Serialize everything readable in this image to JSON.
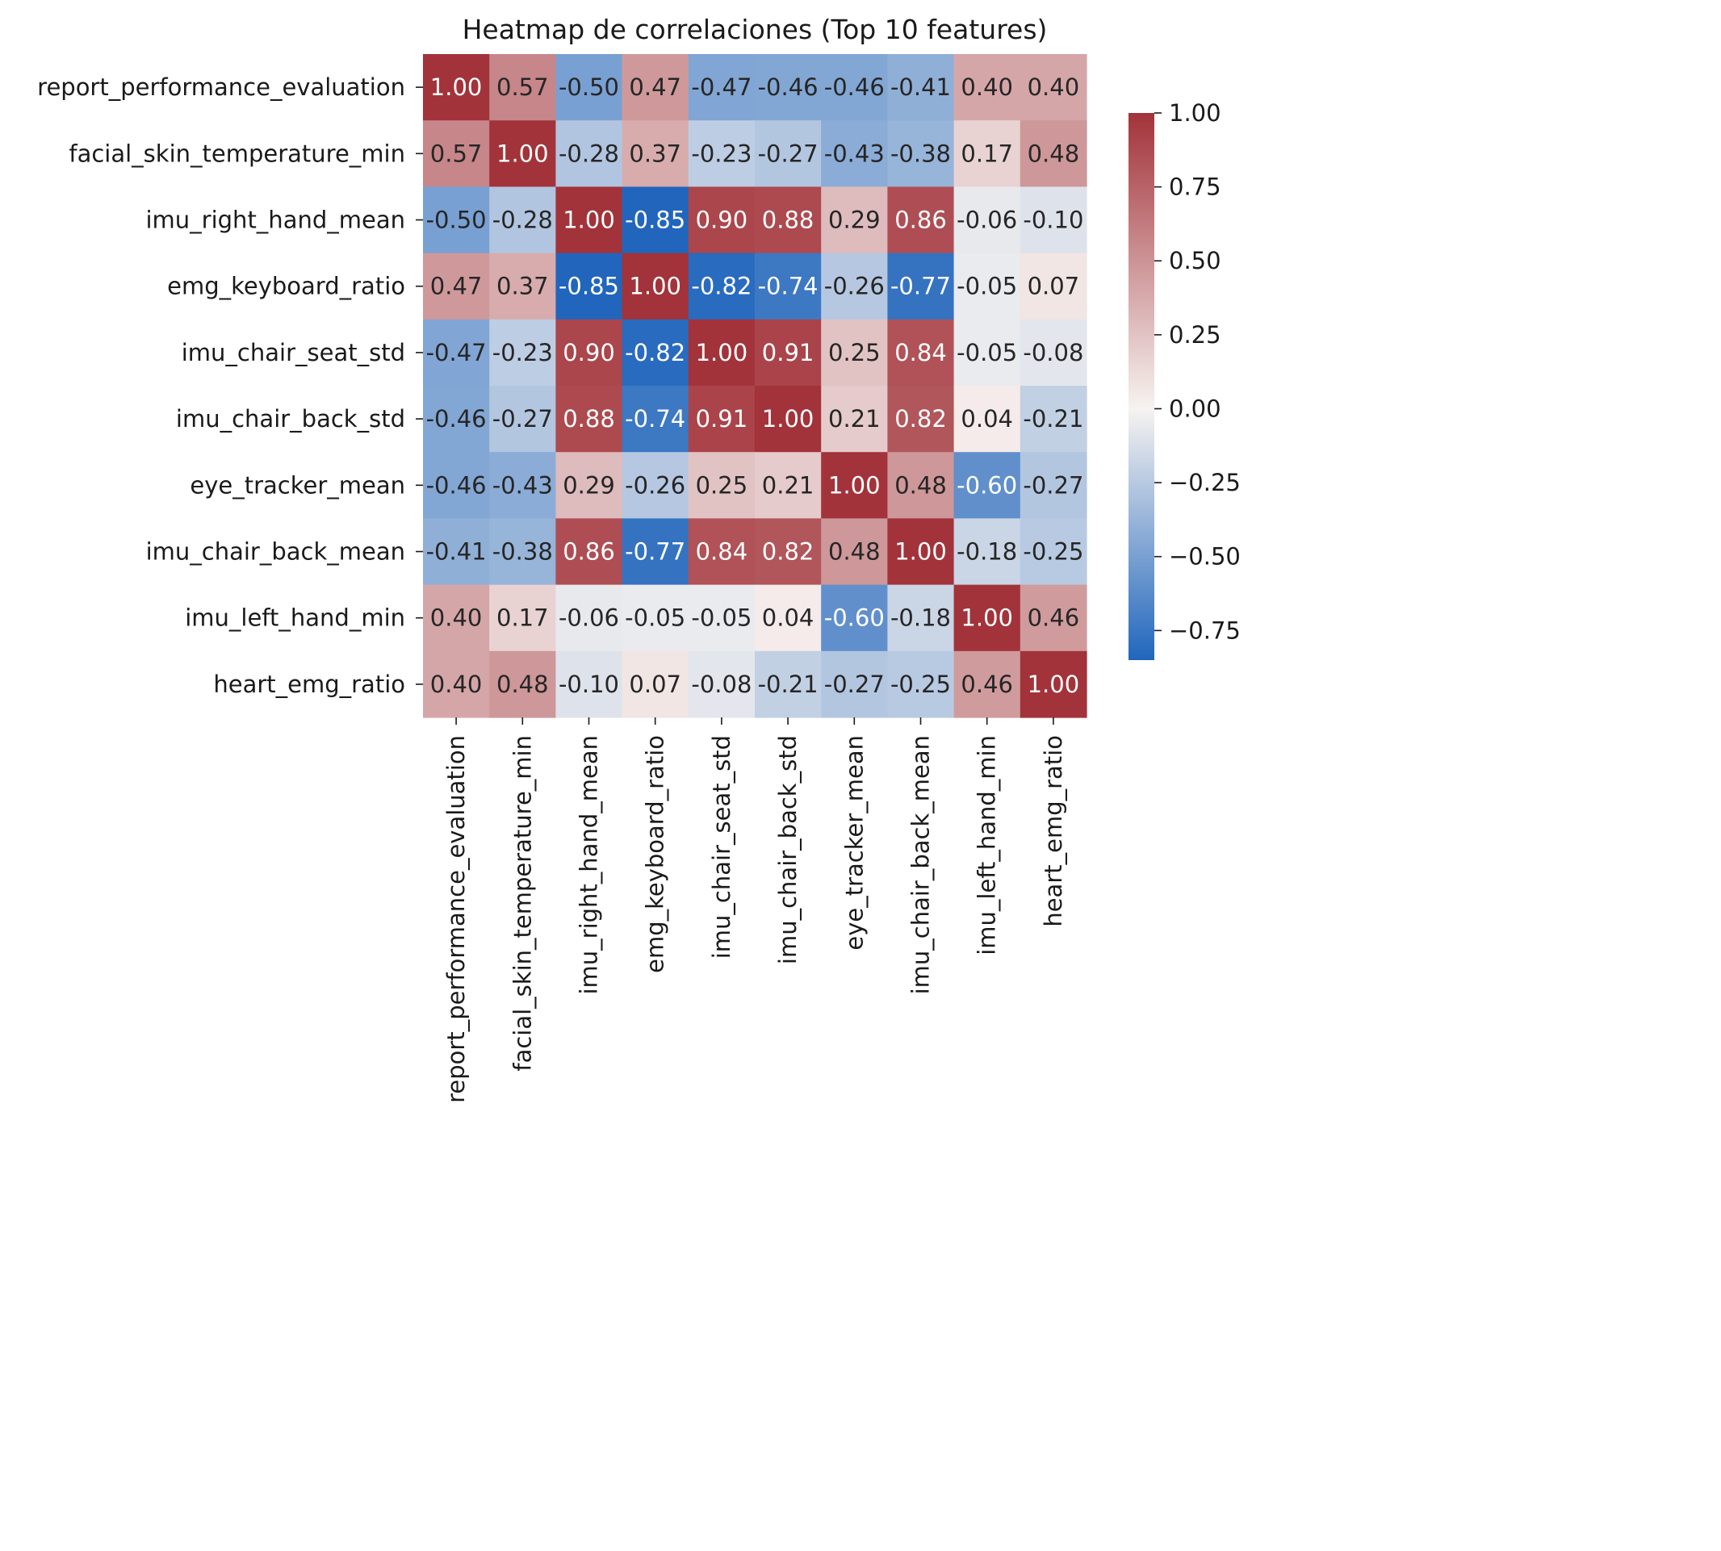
{
  "chart_data": {
    "type": "heatmap",
    "title": "Heatmap de correlaciones (Top 10 features)",
    "xlabel": "",
    "ylabel": "",
    "rows": [
      "report_performance_evaluation",
      "facial_skin_temperature_min",
      "imu_right_hand_mean",
      "emg_keyboard_ratio",
      "imu_chair_seat_std",
      "imu_chair_back_std",
      "eye_tracker_mean",
      "imu_chair_back_mean",
      "imu_left_hand_min",
      "heart_emg_ratio"
    ],
    "columns": [
      "report_performance_evaluation",
      "facial_skin_temperature_min",
      "imu_right_hand_mean",
      "emg_keyboard_ratio",
      "imu_chair_seat_std",
      "imu_chair_back_std",
      "eye_tracker_mean",
      "imu_chair_back_mean",
      "imu_left_hand_min",
      "heart_emg_ratio"
    ],
    "values": [
      [
        1.0,
        0.57,
        -0.5,
        0.47,
        -0.47,
        -0.46,
        -0.46,
        -0.41,
        0.4,
        0.4
      ],
      [
        0.57,
        1.0,
        -0.28,
        0.37,
        -0.23,
        -0.27,
        -0.43,
        -0.38,
        0.17,
        0.48
      ],
      [
        -0.5,
        -0.28,
        1.0,
        -0.85,
        0.9,
        0.88,
        0.29,
        0.86,
        -0.06,
        -0.1
      ],
      [
        0.47,
        0.37,
        -0.85,
        1.0,
        -0.82,
        -0.74,
        -0.26,
        -0.77,
        -0.05,
        0.07
      ],
      [
        -0.47,
        -0.23,
        0.9,
        -0.82,
        1.0,
        0.91,
        0.25,
        0.84,
        -0.05,
        -0.08
      ],
      [
        -0.46,
        -0.27,
        0.88,
        -0.74,
        0.91,
        1.0,
        0.21,
        0.82,
        0.04,
        -0.21
      ],
      [
        -0.46,
        -0.43,
        0.29,
        -0.26,
        0.25,
        0.21,
        1.0,
        0.48,
        -0.6,
        -0.27
      ],
      [
        -0.41,
        -0.38,
        0.86,
        -0.77,
        0.84,
        0.82,
        0.48,
        1.0,
        -0.18,
        -0.25
      ],
      [
        0.4,
        0.17,
        -0.06,
        -0.05,
        -0.05,
        0.04,
        -0.6,
        -0.18,
        1.0,
        0.46
      ],
      [
        0.4,
        0.48,
        -0.1,
        0.07,
        -0.08,
        -0.21,
        -0.27,
        -0.25,
        0.46,
        1.0
      ]
    ],
    "value_format": "2 decimals",
    "colormap": "vlag",
    "vmin": -0.85,
    "vmax": 1.0,
    "colorbar": {
      "ticks": [
        1.0,
        0.75,
        0.5,
        0.25,
        0.0,
        -0.25,
        -0.5,
        -0.75
      ],
      "tick_labels": [
        "1.00",
        "0.75",
        "0.50",
        "0.25",
        "0.00",
        "−0.25",
        "−0.50",
        "−0.75"
      ],
      "placement": "right"
    },
    "grid": false,
    "legend": "none"
  },
  "colors": {
    "low": "#2166bc",
    "mid": "#f7f3f1",
    "high": "#a2333a",
    "text_dark": "#262626",
    "text_light": "#ffffff"
  }
}
